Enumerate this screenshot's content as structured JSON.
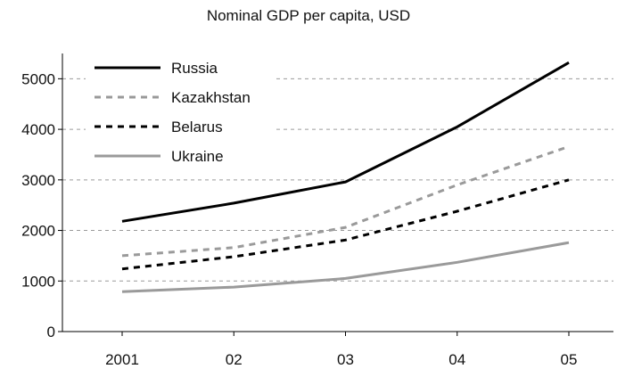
{
  "chart_data": {
    "type": "line",
    "title": "Nominal GDP per capita, USD",
    "categories": [
      "2001",
      "02",
      "03",
      "04",
      "05"
    ],
    "ylim": [
      0,
      5500
    ],
    "yticks": [
      0,
      1000,
      2000,
      3000,
      4000,
      5000
    ],
    "grid": true,
    "legend_position": "top-left",
    "series": [
      {
        "name": "Russia",
        "values": [
          2180,
          2540,
          2960,
          4050,
          5320
        ],
        "color": "#000000",
        "style": "solid"
      },
      {
        "name": "Kazakhstan",
        "values": [
          1500,
          1660,
          2060,
          2900,
          3660
        ],
        "color": "#9a9a9a",
        "style": "dashed"
      },
      {
        "name": "Belarus",
        "values": [
          1240,
          1480,
          1810,
          2380,
          3000
        ],
        "color": "#000000",
        "style": "dashed"
      },
      {
        "name": "Ukraine",
        "values": [
          790,
          880,
          1050,
          1370,
          1760
        ],
        "color": "#9a9a9a",
        "style": "solid"
      }
    ]
  }
}
